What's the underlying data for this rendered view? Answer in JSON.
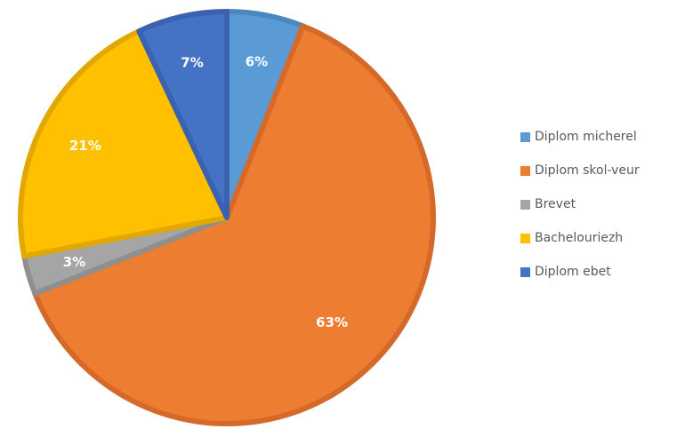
{
  "chart_data": {
    "type": "pie",
    "title": "",
    "legend_position": "right",
    "categories": [
      "Diplom micherel",
      "Diplom skol-veur",
      "Brevet",
      "Bachelouriezh",
      "Diplom ebet"
    ],
    "values": [
      6,
      63,
      3,
      21,
      7
    ],
    "value_labels": [
      "6%",
      "63%",
      "3%",
      "21%",
      "7%"
    ],
    "colors": [
      "#5B9BD5",
      "#ED7D31",
      "#A5A5A5",
      "#FFC000",
      "#4472C4"
    ],
    "border_colors": [
      "#4C87BD",
      "#D4692A",
      "#8F8F8F",
      "#E0A800",
      "#3A62AE"
    ]
  }
}
